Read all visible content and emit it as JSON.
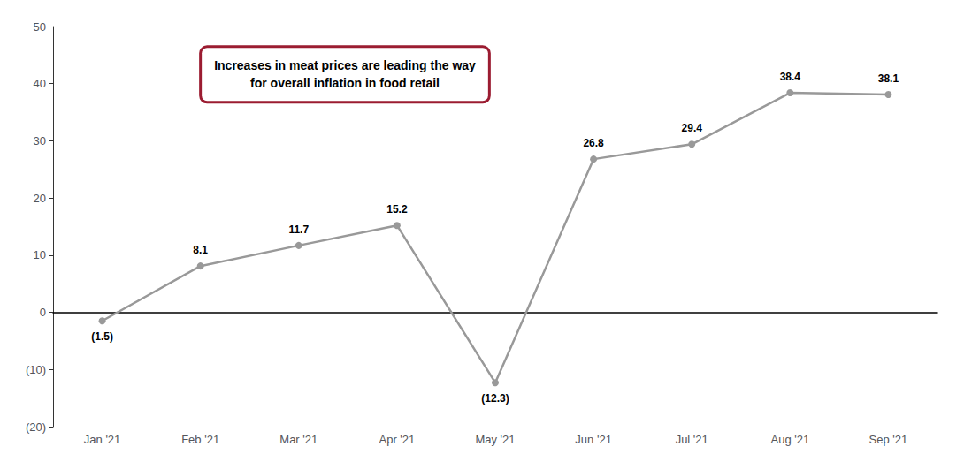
{
  "chart_data": {
    "type": "line",
    "categories": [
      "Jan '21",
      "Feb '21",
      "Mar '21",
      "Apr '21",
      "May '21",
      "Jun '21",
      "Jul '21",
      "Aug '21",
      "Sep '21"
    ],
    "values": [
      -1.5,
      8.1,
      11.7,
      15.2,
      -12.3,
      26.8,
      29.4,
      38.4,
      38.1
    ],
    "value_labels": [
      "(1.5)",
      "8.1",
      "11.7",
      "15.2",
      "(12.3)",
      "26.8",
      "29.4",
      "38.4",
      "38.1"
    ],
    "data_labels": true,
    "color": "#999999",
    "marker": "circle",
    "ylim": [
      -20,
      50
    ],
    "yticks": [
      {
        "value": -20,
        "label": "(20)"
      },
      {
        "value": -10,
        "label": "(10)"
      },
      0,
      10,
      20,
      30,
      40,
      50
    ],
    "grid": false,
    "annotations": [
      {
        "text": "Increases in meat prices are leading the way\nfor overall inflation in food retail",
        "color": "#9b1c31"
      }
    ]
  }
}
